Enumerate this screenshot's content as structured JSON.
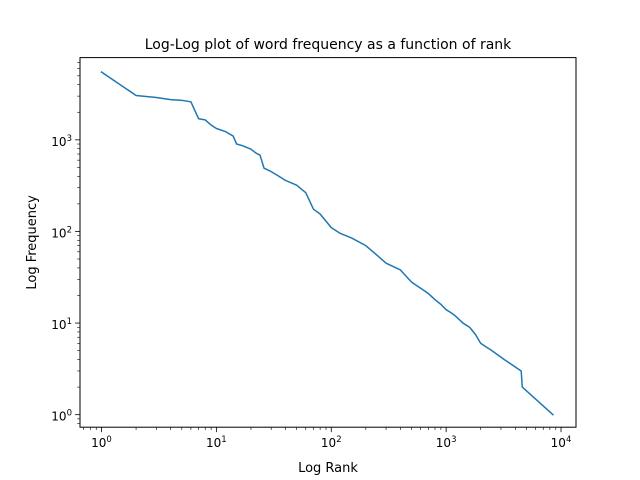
{
  "chart_data": {
    "type": "line",
    "title": "Log-Log plot of word frequency as a function of rank",
    "xlabel": "Log Rank",
    "ylabel": "Log Frequency",
    "x_scale": "log",
    "y_scale": "log",
    "xlim": [
      0.65,
      13500
    ],
    "ylim": [
      0.73,
      7900
    ],
    "grid": false,
    "line_color": "#1f77b4",
    "x_ticks": [
      {
        "value": 1,
        "base": "10",
        "exp": "0"
      },
      {
        "value": 10,
        "base": "10",
        "exp": "1"
      },
      {
        "value": 100,
        "base": "10",
        "exp": "2"
      },
      {
        "value": 1000,
        "base": "10",
        "exp": "3"
      },
      {
        "value": 10000,
        "base": "10",
        "exp": "4"
      }
    ],
    "y_ticks": [
      {
        "value": 1,
        "base": "10",
        "exp": "0"
      },
      {
        "value": 10,
        "base": "10",
        "exp": "1"
      },
      {
        "value": 100,
        "base": "10",
        "exp": "2"
      },
      {
        "value": 1000,
        "base": "10",
        "exp": "3"
      }
    ],
    "series": [
      {
        "x": [
          1,
          2,
          3,
          4,
          5,
          6,
          7,
          8,
          9,
          10,
          12,
          14,
          15,
          17,
          20,
          22,
          24,
          26,
          30,
          35,
          40,
          50,
          60,
          70,
          80,
          100,
          120,
          150,
          200,
          250,
          300,
          400,
          500,
          600,
          700,
          800,
          900,
          1000,
          1100,
          1200,
          1400,
          1600,
          1800,
          2000,
          2500,
          3200,
          4500,
          4600,
          8500
        ],
        "y": [
          5500,
          3050,
          2900,
          2750,
          2700,
          2600,
          1700,
          1650,
          1450,
          1330,
          1230,
          1100,
          900,
          860,
          790,
          720,
          680,
          490,
          450,
          400,
          360,
          320,
          265,
          175,
          155,
          110,
          95,
          85,
          70,
          55,
          45,
          38,
          28,
          24,
          21,
          18,
          16,
          14,
          13,
          12,
          10,
          9,
          7.5,
          6,
          5,
          4,
          3,
          2,
          1
        ]
      }
    ]
  }
}
